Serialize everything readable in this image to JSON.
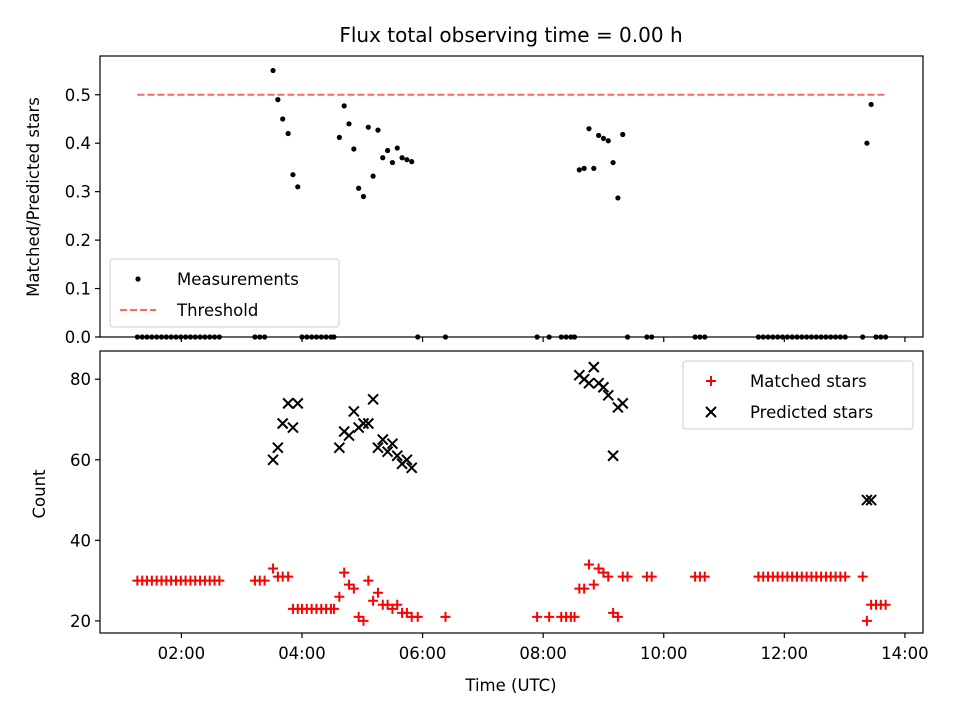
{
  "chart_data": [
    {
      "type": "scatter",
      "title": "Flux total observing time = 0.00 h",
      "xlabel": "",
      "ylabel": "Matched/Predicted stars",
      "xlim_hours": [
        0.65,
        14.3
      ],
      "ylim": [
        0,
        0.58
      ],
      "yticks": [
        0.0,
        0.1,
        0.2,
        0.3,
        0.4,
        0.5
      ],
      "ytick_labels": [
        "0.0",
        "0.1",
        "0.2",
        "0.3",
        "0.4",
        "0.5"
      ],
      "xticks_hours": [
        2,
        4,
        6,
        8,
        10,
        12,
        14
      ],
      "legend_placement": "lower-left",
      "grid": false,
      "series": [
        {
          "name": "Measurements",
          "style": "dot",
          "color": "#000000",
          "points": [
            [
              1.27,
              0
            ],
            [
              1.35,
              0
            ],
            [
              1.43,
              0
            ],
            [
              1.51,
              0
            ],
            [
              1.59,
              0
            ],
            [
              1.67,
              0
            ],
            [
              1.75,
              0
            ],
            [
              1.83,
              0
            ],
            [
              1.91,
              0
            ],
            [
              1.99,
              0
            ],
            [
              2.07,
              0
            ],
            [
              2.15,
              0
            ],
            [
              2.23,
              0
            ],
            [
              2.31,
              0
            ],
            [
              2.39,
              0
            ],
            [
              2.47,
              0
            ],
            [
              2.55,
              0
            ],
            [
              2.63,
              0
            ],
            [
              3.22,
              0
            ],
            [
              3.3,
              0
            ],
            [
              3.38,
              0
            ],
            [
              3.52,
              0.55
            ],
            [
              3.6,
              0.49
            ],
            [
              3.68,
              0.45
            ],
            [
              3.77,
              0.42
            ],
            [
              3.85,
              0.335
            ],
            [
              3.93,
              0.31
            ],
            [
              4.0,
              0
            ],
            [
              4.08,
              0
            ],
            [
              4.16,
              0
            ],
            [
              4.24,
              0
            ],
            [
              4.32,
              0
            ],
            [
              4.4,
              0
            ],
            [
              4.48,
              0
            ],
            [
              4.53,
              0
            ],
            [
              4.62,
              0.412
            ],
            [
              4.7,
              0.477
            ],
            [
              4.78,
              0.44
            ],
            [
              4.86,
              0.388
            ],
            [
              4.94,
              0.307
            ],
            [
              5.02,
              0.29
            ],
            [
              5.1,
              0.433
            ],
            [
              5.18,
              0.332
            ],
            [
              5.26,
              0.427
            ],
            [
              5.34,
              0.37
            ],
            [
              5.42,
              0.385
            ],
            [
              5.5,
              0.36
            ],
            [
              5.58,
              0.39
            ],
            [
              5.66,
              0.37
            ],
            [
              5.74,
              0.366
            ],
            [
              5.82,
              0.362
            ],
            [
              5.92,
              0
            ],
            [
              6.38,
              0
            ],
            [
              7.9,
              0
            ],
            [
              8.1,
              0
            ],
            [
              8.3,
              0
            ],
            [
              8.38,
              0
            ],
            [
              8.46,
              0
            ],
            [
              8.52,
              0
            ],
            [
              8.6,
              0.345
            ],
            [
              8.68,
              0.348
            ],
            [
              8.76,
              0.43
            ],
            [
              8.84,
              0.348
            ],
            [
              8.92,
              0.416
            ],
            [
              9.0,
              0.41
            ],
            [
              9.08,
              0.405
            ],
            [
              9.16,
              0.36
            ],
            [
              9.24,
              0.287
            ],
            [
              9.32,
              0.418
            ],
            [
              9.4,
              0
            ],
            [
              9.72,
              0
            ],
            [
              9.8,
              0
            ],
            [
              10.52,
              0
            ],
            [
              10.6,
              0
            ],
            [
              10.68,
              0
            ],
            [
              11.57,
              0
            ],
            [
              11.65,
              0
            ],
            [
              11.73,
              0
            ],
            [
              11.81,
              0
            ],
            [
              11.89,
              0
            ],
            [
              11.97,
              0
            ],
            [
              12.05,
              0
            ],
            [
              12.13,
              0
            ],
            [
              12.21,
              0
            ],
            [
              12.29,
              0
            ],
            [
              12.37,
              0
            ],
            [
              12.45,
              0
            ],
            [
              12.53,
              0
            ],
            [
              12.61,
              0
            ],
            [
              12.69,
              0
            ],
            [
              12.77,
              0
            ],
            [
              12.85,
              0
            ],
            [
              12.93,
              0
            ],
            [
              13.01,
              0
            ],
            [
              13.3,
              0
            ],
            [
              13.37,
              0.4
            ],
            [
              13.44,
              0.48
            ],
            [
              13.52,
              0
            ],
            [
              13.6,
              0
            ],
            [
              13.68,
              0
            ]
          ]
        },
        {
          "name": "Threshold",
          "style": "dashed-line",
          "color": "#ff6666",
          "x_range_hours": [
            1.27,
            13.68
          ],
          "y": 0.5
        }
      ]
    },
    {
      "type": "scatter",
      "title": "",
      "xlabel": "Time (UTC)",
      "ylabel": "Count",
      "xlim_hours": [
        0.65,
        14.3
      ],
      "ylim": [
        17,
        87
      ],
      "yticks": [
        20,
        40,
        60,
        80
      ],
      "ytick_labels": [
        "20",
        "40",
        "60",
        "80"
      ],
      "xticks_hours": [
        2,
        4,
        6,
        8,
        10,
        12,
        14
      ],
      "xtick_labels": [
        "02:00",
        "04:00",
        "06:00",
        "08:00",
        "10:00",
        "12:00",
        "14:00"
      ],
      "legend_placement": "upper-right",
      "grid": false,
      "series": [
        {
          "name": "Matched stars",
          "style": "plus",
          "color": "#ff0000",
          "points": [
            [
              1.27,
              30
            ],
            [
              1.35,
              30
            ],
            [
              1.43,
              30
            ],
            [
              1.51,
              30
            ],
            [
              1.59,
              30
            ],
            [
              1.67,
              30
            ],
            [
              1.75,
              30
            ],
            [
              1.83,
              30
            ],
            [
              1.91,
              30
            ],
            [
              1.99,
              30
            ],
            [
              2.07,
              30
            ],
            [
              2.15,
              30
            ],
            [
              2.23,
              30
            ],
            [
              2.31,
              30
            ],
            [
              2.39,
              30
            ],
            [
              2.47,
              30
            ],
            [
              2.55,
              30
            ],
            [
              2.63,
              30
            ],
            [
              3.22,
              30
            ],
            [
              3.3,
              30
            ],
            [
              3.38,
              30
            ],
            [
              3.52,
              33
            ],
            [
              3.6,
              31
            ],
            [
              3.68,
              31
            ],
            [
              3.77,
              31
            ],
            [
              3.85,
              23
            ],
            [
              3.93,
              23
            ],
            [
              4.0,
              23
            ],
            [
              4.08,
              23
            ],
            [
              4.16,
              23
            ],
            [
              4.24,
              23
            ],
            [
              4.32,
              23
            ],
            [
              4.4,
              23
            ],
            [
              4.48,
              23
            ],
            [
              4.53,
              23
            ],
            [
              4.62,
              26
            ],
            [
              4.7,
              32
            ],
            [
              4.78,
              29
            ],
            [
              4.86,
              28
            ],
            [
              4.94,
              21
            ],
            [
              5.02,
              20
            ],
            [
              5.1,
              30
            ],
            [
              5.18,
              25
            ],
            [
              5.26,
              27
            ],
            [
              5.34,
              24
            ],
            [
              5.42,
              24
            ],
            [
              5.5,
              23
            ],
            [
              5.58,
              24
            ],
            [
              5.66,
              22
            ],
            [
              5.74,
              22
            ],
            [
              5.82,
              21
            ],
            [
              5.92,
              21
            ],
            [
              6.38,
              21
            ],
            [
              7.9,
              21
            ],
            [
              8.1,
              21
            ],
            [
              8.3,
              21
            ],
            [
              8.38,
              21
            ],
            [
              8.46,
              21
            ],
            [
              8.52,
              21
            ],
            [
              8.6,
              28
            ],
            [
              8.68,
              28
            ],
            [
              8.76,
              34
            ],
            [
              8.84,
              29
            ],
            [
              8.92,
              33
            ],
            [
              9.0,
              32
            ],
            [
              9.08,
              31
            ],
            [
              9.16,
              22
            ],
            [
              9.24,
              21
            ],
            [
              9.32,
              31
            ],
            [
              9.4,
              31
            ],
            [
              9.72,
              31
            ],
            [
              9.8,
              31
            ],
            [
              10.52,
              31
            ],
            [
              10.6,
              31
            ],
            [
              10.68,
              31
            ],
            [
              11.57,
              31
            ],
            [
              11.65,
              31
            ],
            [
              11.73,
              31
            ],
            [
              11.81,
              31
            ],
            [
              11.89,
              31
            ],
            [
              11.97,
              31
            ],
            [
              12.05,
              31
            ],
            [
              12.13,
              31
            ],
            [
              12.21,
              31
            ],
            [
              12.29,
              31
            ],
            [
              12.37,
              31
            ],
            [
              12.45,
              31
            ],
            [
              12.53,
              31
            ],
            [
              12.61,
              31
            ],
            [
              12.69,
              31
            ],
            [
              12.77,
              31
            ],
            [
              12.85,
              31
            ],
            [
              12.93,
              31
            ],
            [
              13.01,
              31
            ],
            [
              13.3,
              31
            ],
            [
              13.37,
              20
            ],
            [
              13.44,
              24
            ],
            [
              13.52,
              24
            ],
            [
              13.6,
              24
            ],
            [
              13.68,
              24
            ]
          ]
        },
        {
          "name": "Predicted stars",
          "style": "x",
          "color": "#000000",
          "points": [
            [
              3.52,
              60
            ],
            [
              3.6,
              63
            ],
            [
              3.68,
              69
            ],
            [
              3.77,
              74
            ],
            [
              3.85,
              68
            ],
            [
              3.93,
              74
            ],
            [
              4.62,
              63
            ],
            [
              4.7,
              67
            ],
            [
              4.78,
              66
            ],
            [
              4.86,
              72
            ],
            [
              4.94,
              68
            ],
            [
              5.02,
              69
            ],
            [
              5.1,
              69
            ],
            [
              5.18,
              75
            ],
            [
              5.26,
              63
            ],
            [
              5.34,
              65
            ],
            [
              5.42,
              62
            ],
            [
              5.5,
              64
            ],
            [
              5.58,
              61
            ],
            [
              5.66,
              59
            ],
            [
              5.74,
              60
            ],
            [
              5.82,
              58
            ],
            [
              8.6,
              81
            ],
            [
              8.68,
              80
            ],
            [
              8.76,
              79
            ],
            [
              8.84,
              83
            ],
            [
              8.92,
              79
            ],
            [
              9.0,
              78
            ],
            [
              9.08,
              76
            ],
            [
              9.16,
              61
            ],
            [
              9.24,
              73
            ],
            [
              9.32,
              74
            ],
            [
              13.37,
              50
            ],
            [
              13.44,
              50
            ]
          ]
        }
      ]
    }
  ]
}
